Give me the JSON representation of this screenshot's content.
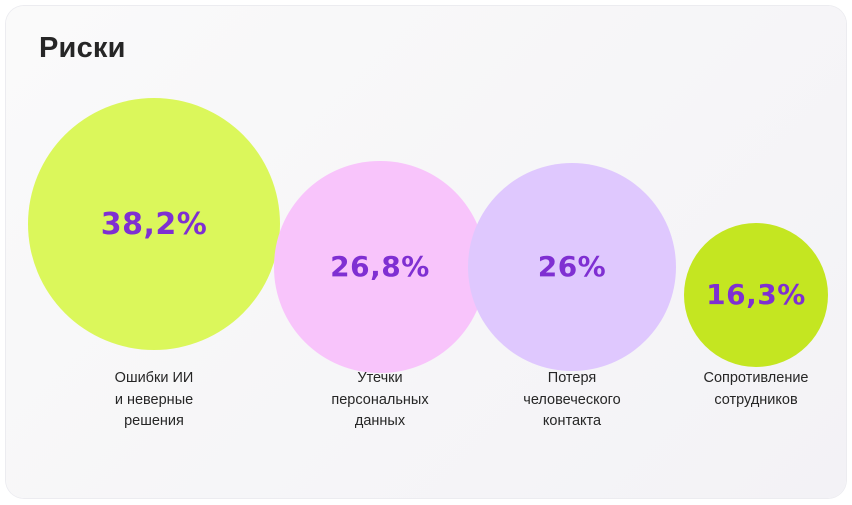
{
  "header": {
    "title": "Риски"
  },
  "chart_data": {
    "type": "bubble",
    "title": "Риски",
    "unit": "%",
    "series": [
      {
        "label": "Ошибки ИИ\nи неверные\nрешения",
        "value": 38.2,
        "value_label": "38,2%",
        "color": "#dbf75b"
      },
      {
        "label": "Утечки\nперсональных\nданных",
        "value": 26.8,
        "value_label": "26,8%",
        "color": "#f8c4fb"
      },
      {
        "label": "Потеря\nчеловеческого\nконтакта",
        "value": 26,
        "value_label": "26%",
        "color": "#dfc8fe"
      },
      {
        "label": "Сопротивление\nсотрудников",
        "value": 16.3,
        "value_label": "16,3%",
        "color": "#c4e621"
      }
    ]
  }
}
